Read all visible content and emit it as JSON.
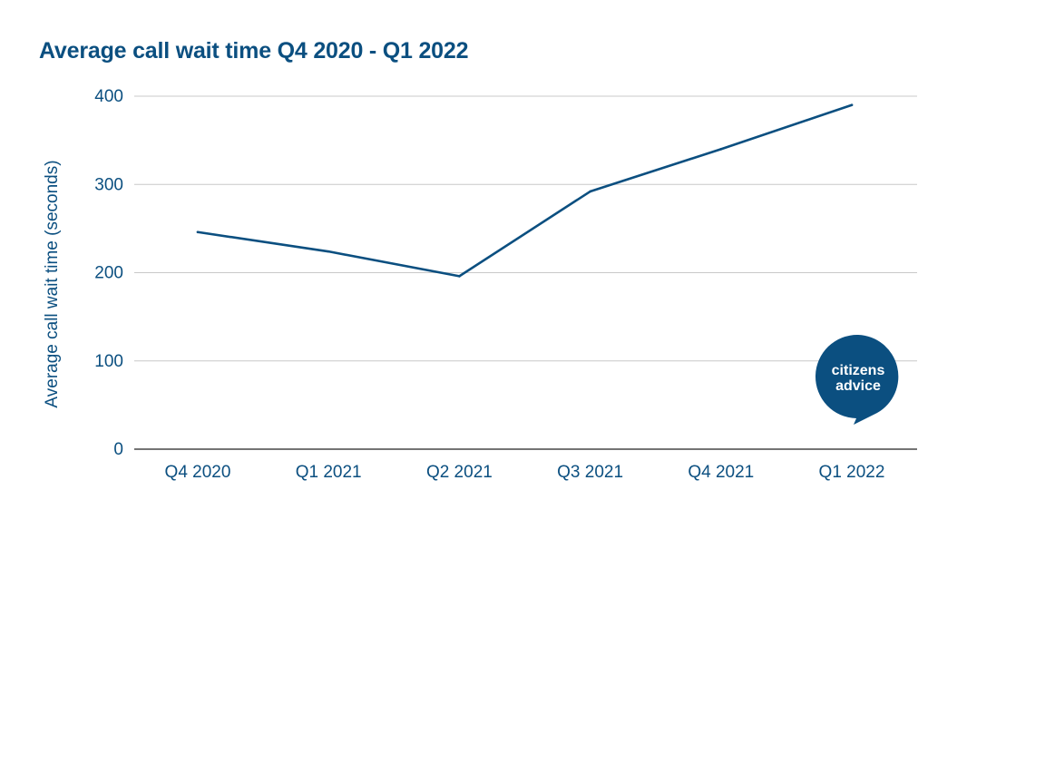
{
  "chart_data": {
    "type": "line",
    "title": "Average call wait time Q4 2020 - Q1 2022",
    "xlabel": "",
    "ylabel": "Average call wait time (seconds)",
    "categories": [
      "Q4 2020",
      "Q1 2021",
      "Q2 2021",
      "Q3 2021",
      "Q4 2021",
      "Q1 2022"
    ],
    "series": [
      {
        "values": [
          246,
          224,
          196,
          292,
          340,
          390
        ]
      }
    ],
    "ylim": [
      0,
      400
    ],
    "yticks": [
      0,
      100,
      200,
      300,
      400
    ],
    "grid": true,
    "legend": "none",
    "line_color": "#0b4f80"
  },
  "logo": {
    "name": "citizens-advice-logo",
    "line1": "citizens",
    "line2": "advice",
    "color": "#0b4f80"
  }
}
